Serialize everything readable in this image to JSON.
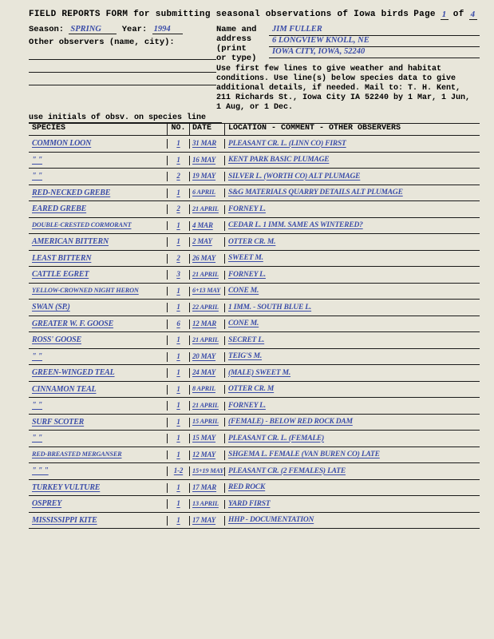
{
  "header": {
    "title": "FIELD REPORTS FORM for submitting seasonal observations of Iowa birds",
    "page_label": "Page",
    "page_current": "1",
    "page_of": "of",
    "page_total": "4",
    "season_label": "Season:",
    "season": "SPRING",
    "year_label": "Year:",
    "year": "1994",
    "name_label": "Name and address (print or type)",
    "name": "JIM FULLER",
    "address1": "6 LONGVIEW KNOLL, NE",
    "address2": "IOWA CITY, IOWA, 52240",
    "other_obs_label": "Other observers (name, city):",
    "instructions": "Use first few lines to give weather and habitat conditions. Use line(s) below species data to give additional details, if needed. Mail to: T. H. Kent, 211 Richards St., Iowa City IA 52240 by 1 Mar, 1 Jun, 1 Aug, or 1 Dec.",
    "initials_note": "use initials of obsv. on species line"
  },
  "columns": {
    "species": "SPECIES",
    "no": "NO.",
    "date": "DATE",
    "loc": "LOCATION - COMMENT - OTHER OBSERVERS"
  },
  "rows": [
    {
      "species": "COMMON LOON",
      "no": "1",
      "date": "31 MAR",
      "loc": "PLEASANT CR. L. (LINN CO) FIRST"
    },
    {
      "species": "\"        \"",
      "no": "1",
      "date": "16 MAY",
      "loc": "KENT PARK           BASIC PLUMAGE"
    },
    {
      "species": "\"        \"",
      "no": "2",
      "date": "19 MAY",
      "loc": "SILVER L. (WORTH CO)   ALT PLUMAGE"
    },
    {
      "species": "RED-NECKED GREBE",
      "no": "1",
      "date": "6 APRIL",
      "loc": "S&G MATERIALS QUARRY   DETAILS  ALT PLUMAGE"
    },
    {
      "species": "EARED GREBE",
      "no": "2",
      "date": "21 APRIL",
      "loc": "FORNEY L."
    },
    {
      "species": "DOUBLE-CRESTED CORMORANT",
      "no": "1",
      "date": "4 MAR",
      "loc": "CEDAR L.  1 IMM.   SAME AS WINTERED?"
    },
    {
      "species": "AMERICAN BITTERN",
      "no": "1",
      "date": "2 MAY",
      "loc": "OTTER CR. M."
    },
    {
      "species": "LEAST BITTERN",
      "no": "2",
      "date": "26 MAY",
      "loc": "SWEET M."
    },
    {
      "species": "CATTLE EGRET",
      "no": "3",
      "date": "21 APRIL",
      "loc": "FORNEY L."
    },
    {
      "species": "YELLOW-CROWNED NIGHT HERON",
      "no": "1",
      "date": "6+13 MAY",
      "loc": "CONE M."
    },
    {
      "species": "SWAN (SP.)",
      "no": "1",
      "date": "22 APRIL",
      "loc": "1 IMM. - SOUTH BLUE L."
    },
    {
      "species": "GREATER W. F. GOOSE",
      "no": "6",
      "date": "12 MAR",
      "loc": "CONE M."
    },
    {
      "species": "ROSS' GOOSE",
      "no": "1",
      "date": "21 APRIL",
      "loc": "SECRET L."
    },
    {
      "species": "\"    \"",
      "no": "1",
      "date": "20 MAY",
      "loc": "TEIG'S  M."
    },
    {
      "species": "GREEN-WINGED TEAL",
      "no": "1",
      "date": "24 MAY",
      "loc": "(MALE)  SWEET M."
    },
    {
      "species": "CINNAMON TEAL",
      "no": "1",
      "date": "8 APRIL",
      "loc": "OTTER CR. M"
    },
    {
      "species": "\"     \"",
      "no": "1",
      "date": "21 APRIL",
      "loc": "FORNEY L."
    },
    {
      "species": "SURF SCOTER",
      "no": "1",
      "date": "15 APRIL",
      "loc": "(FEMALE) - BELOW RED ROCK DAM"
    },
    {
      "species": "\"     \"",
      "no": "1",
      "date": "15 MAY",
      "loc": "PLEASANT CR. L.  (FEMALE)"
    },
    {
      "species": "RED-BREASTED MERGANSER",
      "no": "1",
      "date": "12 MAY",
      "loc": "SHGEMA L. FEMALE (VAN BUREN CO) LATE"
    },
    {
      "species": "\"   \"    \"",
      "no": "1-2",
      "date": "15+19 MAY",
      "loc": "PLEASANT CR. (2 FEMALES) LATE"
    },
    {
      "species": "TURKEY VULTURE",
      "no": "1",
      "date": "17 MAR",
      "loc": "RED ROCK"
    },
    {
      "species": "OSPREY",
      "no": "1",
      "date": "13 APRIL",
      "loc": "YARD    FIRST"
    },
    {
      "species": "MISSISSIPPI KITE",
      "no": "1",
      "date": "17 MAY",
      "loc": "HHP  -  DOCUMENTATION"
    }
  ]
}
